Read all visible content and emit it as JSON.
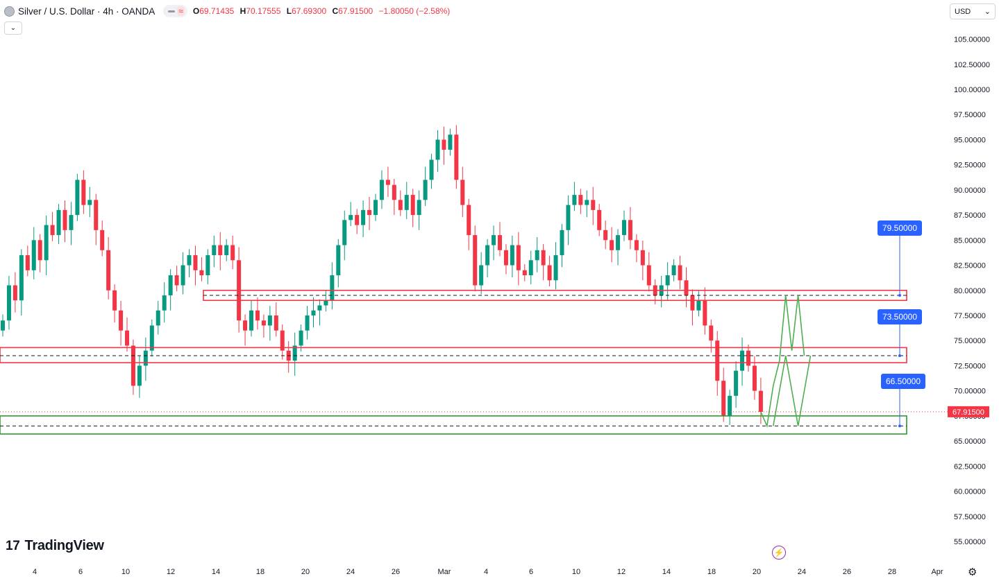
{
  "header": {
    "symbol": "Silver / U.S. Dollar · 4h · OANDA",
    "open_label": "O",
    "open": "69.71435",
    "high_label": "H",
    "high": "70.17555",
    "low_label": "L",
    "low": "67.69300",
    "close_label": "C",
    "close": "67.91500",
    "change": "−1.80050 (−2.58%)"
  },
  "toolbar": {
    "collapse_icon": "chevron-down-icon",
    "currency": "USD",
    "currency_icon": "chevron-down-icon"
  },
  "branding": {
    "logo_mark": "17",
    "logo_text": "TradingView"
  },
  "icons": {
    "bolt": "lightning-icon",
    "settings": "gear-icon"
  },
  "colors": {
    "up": "#089981",
    "down": "#f23645",
    "resistance": "#f23645",
    "support": "#2e9a2e",
    "projection": "#4caf50",
    "target_label": "#2962ff"
  },
  "price_axis": {
    "ticks": [
      "105.00000",
      "102.50000",
      "100.00000",
      "97.50000",
      "95.00000",
      "92.50000",
      "90.00000",
      "87.50000",
      "85.00000",
      "82.50000",
      "80.00000",
      "77.50000",
      "75.00000",
      "72.50000",
      "70.00000",
      "67.50000",
      "65.00000",
      "62.50000",
      "60.00000",
      "57.50000",
      "55.00000"
    ],
    "last_price": "67.91500"
  },
  "time_axis": {
    "ticks": [
      "4",
      "6",
      "10",
      "12",
      "14",
      "18",
      "20",
      "24",
      "26",
      "Mar",
      "4",
      "6",
      "10",
      "12",
      "14",
      "18",
      "20",
      "24",
      "26",
      "28",
      "Apr"
    ]
  },
  "chart_data": {
    "type": "candlestick",
    "instrument": "Silver / U.S. Dollar",
    "timeframe": "4h",
    "last_price": 67.915,
    "y_range": [
      53.5,
      107
    ],
    "candles_close_approx": [
      [
        0,
        77.0
      ],
      [
        1,
        80.5
      ],
      [
        2,
        79.0
      ],
      [
        3,
        83.5
      ],
      [
        4,
        82.0
      ],
      [
        5,
        85.0
      ],
      [
        6,
        83.0
      ],
      [
        7,
        86.5
      ],
      [
        8,
        85.5
      ],
      [
        9,
        88.0
      ],
      [
        10,
        86.0
      ],
      [
        11,
        87.5
      ],
      [
        12,
        91.0
      ],
      [
        13,
        88.5
      ],
      [
        14,
        89.0
      ],
      [
        15,
        86.0
      ],
      [
        16,
        84.0
      ],
      [
        17,
        80.0
      ],
      [
        18,
        78.0
      ],
      [
        19,
        76.0
      ],
      [
        20,
        74.5
      ],
      [
        21,
        70.5
      ],
      [
        22,
        72.5
      ],
      [
        23,
        74.0
      ],
      [
        24,
        76.5
      ],
      [
        25,
        78.0
      ],
      [
        26,
        79.5
      ],
      [
        27,
        81.5
      ],
      [
        28,
        80.5
      ],
      [
        29,
        82.5
      ],
      [
        30,
        83.5
      ],
      [
        31,
        82.0
      ],
      [
        32,
        81.5
      ],
      [
        33,
        83.5
      ],
      [
        34,
        84.5
      ],
      [
        35,
        83.5
      ],
      [
        36,
        84.5
      ],
      [
        37,
        83.0
      ],
      [
        38,
        77.0
      ],
      [
        39,
        76.0
      ],
      [
        40,
        78.0
      ],
      [
        41,
        77.0
      ],
      [
        42,
        76.5
      ],
      [
        43,
        77.5
      ],
      [
        44,
        76.0
      ],
      [
        45,
        74.0
      ],
      [
        46,
        73.0
      ],
      [
        47,
        74.5
      ],
      [
        48,
        76.0
      ],
      [
        49,
        77.5
      ],
      [
        50,
        78.0
      ],
      [
        51,
        78.5
      ],
      [
        52,
        79.0
      ],
      [
        53,
        81.5
      ],
      [
        54,
        84.5
      ],
      [
        55,
        87.0
      ],
      [
        56,
        87.5
      ],
      [
        57,
        86.5
      ],
      [
        58,
        88.0
      ],
      [
        59,
        87.5
      ],
      [
        60,
        89.0
      ],
      [
        61,
        91.0
      ],
      [
        62,
        90.5
      ],
      [
        63,
        89.0
      ],
      [
        64,
        88.0
      ],
      [
        65,
        89.5
      ],
      [
        66,
        87.5
      ],
      [
        67,
        89.0
      ],
      [
        68,
        91.0
      ],
      [
        69,
        93.0
      ],
      [
        70,
        95.0
      ],
      [
        71,
        94.0
      ],
      [
        72,
        95.5
      ],
      [
        73,
        91.0
      ],
      [
        74,
        88.5
      ],
      [
        75,
        85.5
      ],
      [
        76,
        80.5
      ],
      [
        77,
        82.5
      ],
      [
        78,
        84.5
      ],
      [
        79,
        85.5
      ],
      [
        80,
        84.0
      ],
      [
        81,
        82.5
      ],
      [
        82,
        84.5
      ],
      [
        83,
        82.0
      ],
      [
        84,
        81.5
      ],
      [
        85,
        83.0
      ],
      [
        86,
        84.0
      ],
      [
        87,
        82.5
      ],
      [
        88,
        81.0
      ],
      [
        89,
        83.5
      ],
      [
        90,
        86.0
      ],
      [
        91,
        88.5
      ],
      [
        92,
        89.5
      ],
      [
        93,
        88.5
      ],
      [
        94,
        89.0
      ],
      [
        95,
        88.0
      ],
      [
        96,
        86.0
      ],
      [
        97,
        85.0
      ],
      [
        98,
        84.0
      ],
      [
        99,
        85.5
      ],
      [
        100,
        87.0
      ],
      [
        101,
        85.0
      ],
      [
        102,
        84.0
      ],
      [
        103,
        82.5
      ],
      [
        104,
        80.5
      ],
      [
        105,
        79.5
      ],
      [
        106,
        80.5
      ],
      [
        107,
        81.5
      ],
      [
        108,
        82.5
      ],
      [
        109,
        81.0
      ],
      [
        110,
        79.5
      ],
      [
        111,
        78.0
      ],
      [
        112,
        79.0
      ],
      [
        113,
        76.5
      ],
      [
        114,
        75.0
      ],
      [
        115,
        71.0
      ],
      [
        116,
        67.5
      ],
      [
        117,
        69.5
      ],
      [
        118,
        72.0
      ],
      [
        119,
        74.0
      ],
      [
        120,
        72.5
      ],
      [
        121,
        70.0
      ],
      [
        122,
        67.9
      ]
    ],
    "zones": [
      {
        "name": "resistance",
        "level": 79.5,
        "top": 80.0,
        "bottom": 79.0,
        "color": "#f23645"
      },
      {
        "name": "resistance",
        "level": 73.5,
        "top": 74.3,
        "bottom": 72.8,
        "color": "#f23645"
      },
      {
        "name": "support",
        "level": 66.5,
        "top": 67.5,
        "bottom": 65.7,
        "color": "#2e9a2e"
      }
    ],
    "target_labels": [
      "79.50000",
      "73.50000",
      "66.50000"
    ],
    "projection_path_1": [
      [
        122,
        67.9
      ],
      [
        123,
        66.5
      ],
      [
        124,
        70.5
      ],
      [
        125,
        73.0
      ],
      [
        126,
        79.5
      ],
      [
        127,
        74.0
      ],
      [
        128,
        79.5
      ],
      [
        129,
        73.5
      ]
    ],
    "projection_path_2": [
      [
        124,
        66.5
      ],
      [
        126,
        73.5
      ],
      [
        128,
        66.5
      ],
      [
        130,
        73.5
      ]
    ]
  }
}
